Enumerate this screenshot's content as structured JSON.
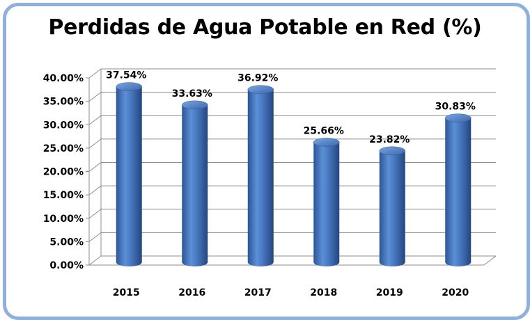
{
  "chart_data": {
    "type": "bar",
    "title": "Perdidas de Agua Potable en Red (%)",
    "categories": [
      "2015",
      "2016",
      "2017",
      "2018",
      "2019",
      "2020"
    ],
    "values": [
      37.54,
      33.63,
      36.92,
      25.66,
      23.82,
      30.83
    ],
    "data_labels": [
      "37.54%",
      "33.63%",
      "36.92%",
      "25.66%",
      "23.82%",
      "30.83%"
    ],
    "y_ticks": [
      "0.00%",
      "5.00%",
      "10.00%",
      "15.00%",
      "20.00%",
      "25.00%",
      "30.00%",
      "35.00%",
      "40.00%"
    ],
    "ylim": [
      0,
      40
    ],
    "grid": true,
    "bar_color": "#4a7bc4",
    "frame_color": "#8fb0dc"
  }
}
